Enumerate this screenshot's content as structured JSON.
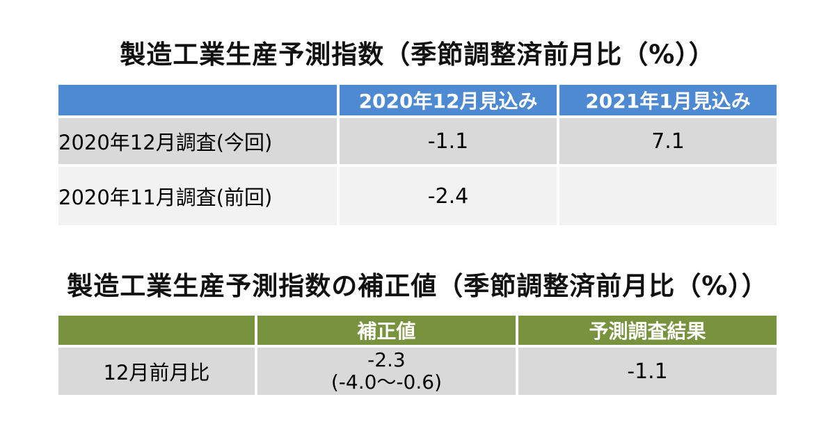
{
  "colors": {
    "background": "#FFFFFF",
    "table1_header_bg": "#4E8AD1",
    "table2_header_bg": "#78923E",
    "row_dark_bg": "#D9D9D9",
    "row_light_bg": "#F2F2F2",
    "header_text": "#FFFFFF",
    "body_text": "#000000"
  },
  "table1": {
    "title": "製造工業生産予測指数（季節調整済前月比（%））",
    "columns": [
      "",
      "2020年12月見込み",
      "2021年1月見込み"
    ],
    "rows": [
      {
        "label": "2020年12月調査(今回)",
        "values": [
          "-1.1",
          "7.1"
        ]
      },
      {
        "label": "2020年11月調査(前回)",
        "values": [
          "-2.4",
          ""
        ]
      }
    ]
  },
  "table2": {
    "title": "製造工業生産予測指数の補正値（季節調整済前月比（%））",
    "columns": [
      "",
      "補正値",
      "予測調査結果"
    ],
    "rows": [
      {
        "label": "12月前月比",
        "value_main": "-2.3",
        "value_range": "(-4.0〜-0.6)",
        "result": "-1.1"
      }
    ]
  }
}
